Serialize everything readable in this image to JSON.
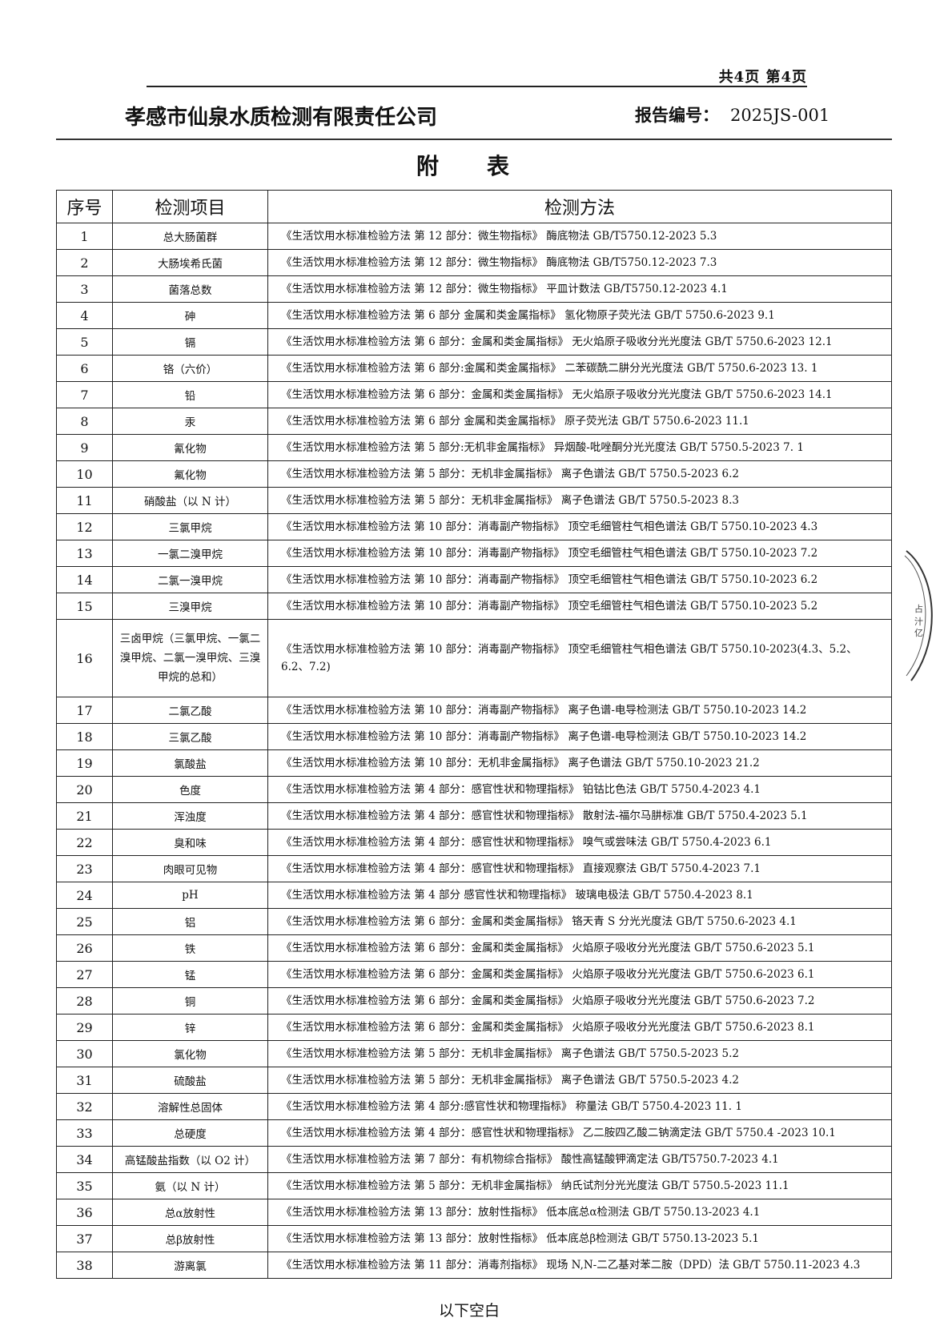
{
  "header": {
    "page_info": "共4页 第4页",
    "company": "孝感市仙泉水质检测有限责任公司",
    "report_no_label": "报告编号：",
    "report_no": "2025JS-001"
  },
  "title": "附表",
  "table": {
    "columns": [
      "序号",
      "检测项目",
      "检测方法"
    ],
    "rows": [
      {
        "no": "1",
        "item": "总大肠菌群",
        "method": "《生活饮用水标准检验方法 第 12 部分：微生物指标》 酶底物法 GB/T5750.12-2023 5.3"
      },
      {
        "no": "2",
        "item": "大肠埃希氏菌",
        "method": "《生活饮用水标准检验方法 第 12 部分：微生物指标》 酶底物法 GB/T5750.12-2023 7.3"
      },
      {
        "no": "3",
        "item": "菌落总数",
        "method": "《生活饮用水标准检验方法 第 12 部分：微生物指标》 平皿计数法 GB/T5750.12-2023 4.1"
      },
      {
        "no": "4",
        "item": "砷",
        "method": "《生活饮用水标准检验方法 第 6 部分 金属和类金属指标》 氢化物原子荧光法 GB/T 5750.6-2023 9.1"
      },
      {
        "no": "5",
        "item": "镉",
        "method": "《生活饮用水标准检验方法 第 6 部分：金属和类金属指标》 无火焰原子吸收分光光度法 GB/T 5750.6-2023 12.1"
      },
      {
        "no": "6",
        "item": "铬（六价）",
        "method": "《生活饮用水标准检验方法 第 6 部分:金属和类金属指标》 二苯碳酰二肼分光光度法 GB/T 5750.6-2023 13. 1"
      },
      {
        "no": "7",
        "item": "铅",
        "method": "《生活饮用水标准检验方法 第 6 部分：金属和类金属指标》 无火焰原子吸收分光光度法 GB/T 5750.6-2023 14.1"
      },
      {
        "no": "8",
        "item": "汞",
        "method": "《生活饮用水标准检验方法 第 6 部分 金属和类金属指标》 原子荧光法 GB/T 5750.6-2023 11.1"
      },
      {
        "no": "9",
        "item": "氰化物",
        "method": "《生活饮用水标准检验方法 第 5 部分:无机非金属指标》 异烟酸-吡唑酮分光光度法 GB/T 5750.5-2023 7. 1"
      },
      {
        "no": "10",
        "item": "氟化物",
        "method": "《生活饮用水标准检验方法 第 5 部分：无机非金属指标》 离子色谱法 GB/T 5750.5-2023 6.2"
      },
      {
        "no": "11",
        "item": "硝酸盐（以 N 计）",
        "method": "《生活饮用水标准检验方法 第 5 部分：无机非金属指标》 离子色谱法 GB/T 5750.5-2023 8.3"
      },
      {
        "no": "12",
        "item": "三氯甲烷",
        "method": "《生活饮用水标准检验方法 第 10 部分：消毒副产物指标》 顶空毛细管柱气相色谱法 GB/T 5750.10-2023 4.3"
      },
      {
        "no": "13",
        "item": "一氯二溴甲烷",
        "method": "《生活饮用水标准检验方法 第 10 部分：消毒副产物指标》 顶空毛细管柱气相色谱法 GB/T 5750.10-2023 7.2"
      },
      {
        "no": "14",
        "item": "二氯一溴甲烷",
        "method": "《生活饮用水标准检验方法 第 10 部分：消毒副产物指标》 顶空毛细管柱气相色谱法 GB/T 5750.10-2023 6.2"
      },
      {
        "no": "15",
        "item": "三溴甲烷",
        "method": "《生活饮用水标准检验方法 第 10 部分：消毒副产物指标》 顶空毛细管柱气相色谱法 GB/T 5750.10-2023 5.2"
      },
      {
        "no": "16",
        "item": "三卤甲烷（三氯甲烷、一氯二溴甲烷、二氯一溴甲烷、三溴甲烷的总和）",
        "method": "《生活饮用水标准检验方法 第 10 部分：消毒副产物指标》 顶空毛细管柱气相色谱法 GB/T 5750.10-2023(4.3、5.2、6.2、7.2)"
      },
      {
        "no": "17",
        "item": "二氯乙酸",
        "method": "《生活饮用水标准检验方法 第 10 部分：消毒副产物指标》 离子色谱-电导检测法 GB/T 5750.10-2023 14.2"
      },
      {
        "no": "18",
        "item": "三氯乙酸",
        "method": "《生活饮用水标准检验方法 第 10 部分：消毒副产物指标》 离子色谱-电导检测法 GB/T 5750.10-2023 14.2"
      },
      {
        "no": "19",
        "item": "氯酸盐",
        "method": "《生活饮用水标准检验方法 第 10 部分：无机非金属指标》 离子色谱法 GB/T 5750.10-2023 21.2"
      },
      {
        "no": "20",
        "item": "色度",
        "method": "《生活饮用水标准检验方法 第 4 部分：感官性状和物理指标》 铂钴比色法 GB/T 5750.4-2023 4.1"
      },
      {
        "no": "21",
        "item": "浑浊度",
        "method": "《生活饮用水标准检验方法 第 4 部分：感官性状和物理指标》 散射法-福尔马肼标准 GB/T 5750.4-2023 5.1"
      },
      {
        "no": "22",
        "item": "臭和味",
        "method": "《生活饮用水标准检验方法 第 4 部分：感官性状和物理指标》 嗅气或尝味法 GB/T 5750.4-2023 6.1"
      },
      {
        "no": "23",
        "item": "肉眼可见物",
        "method": "《生活饮用水标准检验方法 第 4 部分：感官性状和物理指标》 直接观察法 GB/T 5750.4-2023 7.1"
      },
      {
        "no": "24",
        "item": "pH",
        "method": "《生活饮用水标准检验方法 第 4 部分 感官性状和物理指标》 玻璃电极法 GB/T 5750.4-2023 8.1"
      },
      {
        "no": "25",
        "item": "铝",
        "method": "《生活饮用水标准检验方法 第 6 部分：金属和类金属指标》 铬天青 S 分光光度法 GB/T 5750.6-2023 4.1"
      },
      {
        "no": "26",
        "item": "铁",
        "method": "《生活饮用水标准检验方法 第 6 部分：金属和类金属指标》 火焰原子吸收分光光度法  GB/T 5750.6-2023 5.1"
      },
      {
        "no": "27",
        "item": "锰",
        "method": "《生活饮用水标准检验方法 第 6 部分：金属和类金属指标》 火焰原子吸收分光光度法 GB/T 5750.6-2023 6.1"
      },
      {
        "no": "28",
        "item": "铜",
        "method": "《生活饮用水标准检验方法 第 6 部分：金属和类金属指标》 火焰原子吸收分光光度法 GB/T 5750.6-2023 7.2"
      },
      {
        "no": "29",
        "item": "锌",
        "method": "《生活饮用水标准检验方法 第 6 部分：金属和类金属指标》 火焰原子吸收分光光度法 GB/T 5750.6-2023 8.1"
      },
      {
        "no": "30",
        "item": "氯化物",
        "method": "《生活饮用水标准检验方法 第 5 部分：无机非金属指标》 离子色谱法 GB/T 5750.5-2023 5.2"
      },
      {
        "no": "31",
        "item": "硫酸盐",
        "method": "《生活饮用水标准检验方法 第 5 部分：无机非金属指标》 离子色谱法 GB/T 5750.5-2023 4.2"
      },
      {
        "no": "32",
        "item": "溶解性总固体",
        "method": "《生活饮用水标准检验方法 第 4 部分:感官性状和物理指标》 称量法 GB/T 5750.4-2023 11. 1"
      },
      {
        "no": "33",
        "item": "总硬度",
        "method": "《生活饮用水标准检验方法 第 4 部分：感官性状和物理指标》 乙二胺四乙酸二钠滴定法 GB/T 5750.4 -2023 10.1"
      },
      {
        "no": "34",
        "item": "高锰酸盐指数（以 O2 计）",
        "method": "《生活饮用水标准检验方法 第 7 部分：有机物综合指标》 酸性高锰酸钾滴定法 GB/T5750.7-2023 4.1"
      },
      {
        "no": "35",
        "item": "氨（以 N 计）",
        "method": "《生活饮用水标准检验方法 第 5 部分：无机非金属指标》 纳氏试剂分光光度法 GB/T 5750.5-2023 11.1"
      },
      {
        "no": "36",
        "item": "总α放射性",
        "method": "《生活饮用水标准检验方法 第 13 部分：放射性指标》 低本底总α检测法 GB/T 5750.13-2023 4.1"
      },
      {
        "no": "37",
        "item": "总β放射性",
        "method": "《生活饮用水标准检验方法 第 13 部分：放射性指标》 低本底总β检测法 GB/T 5750.13-2023 5.1"
      },
      {
        "no": "38",
        "item": "游离氯",
        "method": "《生活饮用水标准检验方法 第 11 部分：消毒剂指标》 现场 N,N-二乙基对苯二胺（DPD）法 GB/T 5750.11-2023 4.3"
      }
    ]
  },
  "footer": "以下空白"
}
